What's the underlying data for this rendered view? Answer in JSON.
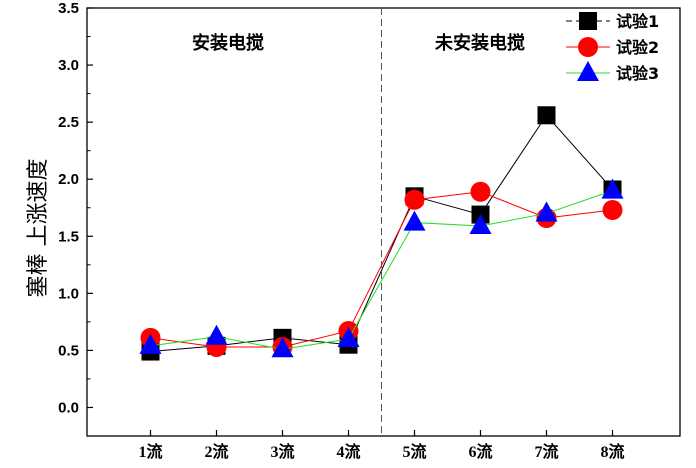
{
  "chart_data": {
    "type": "line",
    "categories": [
      "1流",
      "2流",
      "3流",
      "4流",
      "5流",
      "6流",
      "7流",
      "8流"
    ],
    "ylabel": "塞棒 上涨速度",
    "ylim": [
      -0.25,
      3.5
    ],
    "yticks": [
      "0.0",
      "0.5",
      "1.0",
      "1.5",
      "2.0",
      "2.5",
      "3.0",
      "3.5"
    ],
    "divider_after_category": 4,
    "region_labels": [
      "安装电搅",
      "未安装电搅"
    ],
    "legend_position": "top-right",
    "series": [
      {
        "name": "试验1",
        "marker": "square",
        "color": "#000000",
        "line_color": "#000000",
        "values": [
          0.49,
          0.54,
          0.61,
          0.55,
          1.85,
          1.69,
          2.56,
          1.91
        ]
      },
      {
        "name": "试验2",
        "marker": "circle",
        "color": "#ff0000",
        "line_color": "#ff0000",
        "values": [
          0.61,
          0.53,
          0.53,
          0.67,
          1.82,
          1.89,
          1.66,
          1.73
        ]
      },
      {
        "name": "试验3",
        "marker": "triangle",
        "color": "#0000ff",
        "line_color": "#22dd22",
        "values": [
          0.54,
          0.62,
          0.51,
          0.6,
          1.62,
          1.59,
          1.7,
          1.9
        ]
      }
    ]
  }
}
